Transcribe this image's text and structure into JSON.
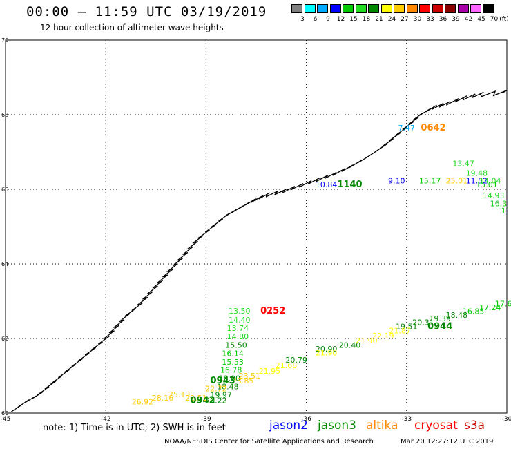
{
  "header": {
    "title": "00:00 – 11:59 UTC 03/19/2019",
    "subtitle": "12 hour collection of altimeter wave heights"
  },
  "color_scale": {
    "unit_label": "(ft)",
    "bins": [
      {
        "label": "3",
        "color": "#808080"
      },
      {
        "label": "6",
        "color": "#00ffff"
      },
      {
        "label": "9",
        "color": "#00aaff"
      },
      {
        "label": "12",
        "color": "#0000ff"
      },
      {
        "label": "15",
        "color": "#00cc00"
      },
      {
        "label": "18",
        "color": "#22dd22"
      },
      {
        "label": "21",
        "color": "#008800"
      },
      {
        "label": "24",
        "color": "#ffff00"
      },
      {
        "label": "27",
        "color": "#ffcc00"
      },
      {
        "label": "30",
        "color": "#ff8800"
      },
      {
        "label": "33",
        "color": "#ff0000"
      },
      {
        "label": "36",
        "color": "#cc0000"
      },
      {
        "label": "39",
        "color": "#880000"
      },
      {
        "label": "42",
        "color": "#aa00aa"
      },
      {
        "label": "45",
        "color": "#ff66ff"
      },
      {
        "label": "70",
        "color": "#000000"
      }
    ]
  },
  "map": {
    "lon_range": [
      -45,
      -30
    ],
    "lat_range": [
      60,
      70
    ],
    "lon_ticks": [
      {
        "value": -45,
        "label": "-45"
      },
      {
        "value": -42,
        "label": "-42"
      },
      {
        "value": -39,
        "label": "-39"
      },
      {
        "value": -36,
        "label": "-36"
      },
      {
        "value": -33,
        "label": "-33"
      },
      {
        "value": -30,
        "label": "-30"
      }
    ],
    "lat_ticks": [
      {
        "value": 60,
        "label": "60"
      },
      {
        "value": 62,
        "label": "62"
      },
      {
        "value": 64,
        "label": "64"
      },
      {
        "value": 66,
        "label": "66"
      },
      {
        "value": 68,
        "label": "68"
      },
      {
        "value": 70,
        "label": "70"
      }
    ],
    "grid": true,
    "time_labels": [
      {
        "text": "0642",
        "lon": -32.2,
        "lat": 67.57,
        "color": "#ff8800"
      },
      {
        "text": "1140",
        "lon": -34.7,
        "lat": 66.06,
        "color": "#008800"
      },
      {
        "text": "0252",
        "lon": -37.0,
        "lat": 62.67,
        "color": "#ff0000"
      },
      {
        "text": "0944",
        "lon": -32.0,
        "lat": 62.25,
        "color": "#008800"
      },
      {
        "text": "0943",
        "lon": -38.5,
        "lat": 60.8,
        "color": "#008800"
      },
      {
        "text": "0942",
        "lon": -39.1,
        "lat": 60.27,
        "color": "#008800"
      }
    ],
    "wave_heights": [
      {
        "text": "7.47",
        "lon": -33.0,
        "lat": 67.57,
        "color": "#00aaff"
      },
      {
        "text": "10.84",
        "lon": -35.4,
        "lat": 66.06,
        "color": "#0000ff"
      },
      {
        "text": "9.10",
        "lon": -33.3,
        "lat": 66.16,
        "color": "#0000ff"
      },
      {
        "text": "15.17",
        "lon": -32.3,
        "lat": 66.16,
        "color": "#00cc00"
      },
      {
        "text": "25.01",
        "lon": -31.5,
        "lat": 66.16,
        "color": "#ffcc00"
      },
      {
        "text": "11.52",
        "lon": -30.9,
        "lat": 66.16,
        "color": "#0000ff"
      },
      {
        "text": "13.47",
        "lon": -31.3,
        "lat": 66.62,
        "color": "#22dd22"
      },
      {
        "text": "19.48",
        "lon": -30.9,
        "lat": 66.36,
        "color": "#22dd22"
      },
      {
        "text": "14.04",
        "lon": -30.5,
        "lat": 66.16,
        "color": "#22dd22"
      },
      {
        "text": "15.01",
        "lon": -30.6,
        "lat": 66.06,
        "color": "#00cc00"
      },
      {
        "text": "14.93",
        "lon": -30.4,
        "lat": 65.76,
        "color": "#22dd22"
      },
      {
        "text": "16.3",
        "lon": -30.25,
        "lat": 65.55,
        "color": "#00cc00"
      },
      {
        "text": "1",
        "lon": -30.1,
        "lat": 65.35,
        "color": "#00cc00"
      },
      {
        "text": "13.50",
        "lon": -38.0,
        "lat": 62.67,
        "color": "#22dd22"
      },
      {
        "text": "14.40",
        "lon": -38.0,
        "lat": 62.43,
        "color": "#22dd22"
      },
      {
        "text": "13.74",
        "lon": -38.05,
        "lat": 62.2,
        "color": "#22dd22"
      },
      {
        "text": "14.80",
        "lon": -38.05,
        "lat": 61.98,
        "color": "#22dd22"
      },
      {
        "text": "15.50",
        "lon": -38.1,
        "lat": 61.75,
        "color": "#008800"
      },
      {
        "text": "16.14",
        "lon": -38.2,
        "lat": 61.53,
        "color": "#00cc00"
      },
      {
        "text": "15.53",
        "lon": -38.2,
        "lat": 61.3,
        "color": "#00cc00"
      },
      {
        "text": "16.78",
        "lon": -38.25,
        "lat": 61.08,
        "color": "#00cc00"
      },
      {
        "text": "18.90",
        "lon": -38.3,
        "lat": 60.86,
        "color": "#008800"
      },
      {
        "text": "18.48",
        "lon": -38.35,
        "lat": 60.64,
        "color": "#008800"
      },
      {
        "text": "19.97",
        "lon": -38.55,
        "lat": 60.42,
        "color": "#008800"
      },
      {
        "text": "20.22",
        "lon": -38.7,
        "lat": 60.27,
        "color": "#008800"
      },
      {
        "text": "20.79",
        "lon": -36.3,
        "lat": 61.35,
        "color": "#008800"
      },
      {
        "text": "20.90",
        "lon": -35.4,
        "lat": 61.65,
        "color": "#008800"
      },
      {
        "text": "20.40",
        "lon": -34.7,
        "lat": 61.75,
        "color": "#008800"
      },
      {
        "text": "19.51",
        "lon": -33.0,
        "lat": 62.25,
        "color": "#008800"
      },
      {
        "text": "20.31",
        "lon": -32.5,
        "lat": 62.36,
        "color": "#008800"
      },
      {
        "text": "19.39",
        "lon": -32.0,
        "lat": 62.46,
        "color": "#008800"
      },
      {
        "text": "18.48",
        "lon": -31.5,
        "lat": 62.56,
        "color": "#008800"
      },
      {
        "text": "16.85",
        "lon": -31.0,
        "lat": 62.66,
        "color": "#00cc00"
      },
      {
        "text": "17.24",
        "lon": -30.5,
        "lat": 62.76,
        "color": "#00cc00"
      },
      {
        "text": "17.6",
        "lon": -30.1,
        "lat": 62.86,
        "color": "#00cc00"
      },
      {
        "text": "26.92",
        "lon": -40.9,
        "lat": 60.23,
        "color": "#ffcc00"
      },
      {
        "text": "28.16",
        "lon": -40.3,
        "lat": 60.33,
        "color": "#ffcc00"
      },
      {
        "text": "25.13",
        "lon": -39.8,
        "lat": 60.43,
        "color": "#ffcc00"
      },
      {
        "text": "22.51",
        "lon": -39.3,
        "lat": 60.33,
        "color": "#ffcc00"
      },
      {
        "text": "22.72",
        "lon": -38.7,
        "lat": 60.58,
        "color": "#ffcc00"
      },
      {
        "text": "23.85",
        "lon": -37.9,
        "lat": 60.8,
        "color": "#ffcc00"
      },
      {
        "text": "23.51",
        "lon": -37.7,
        "lat": 60.93,
        "color": "#ffcc00"
      },
      {
        "text": "21.95",
        "lon": -37.1,
        "lat": 61.06,
        "color": "#ffff00"
      },
      {
        "text": "21.68",
        "lon": -36.6,
        "lat": 61.2,
        "color": "#ffff00"
      },
      {
        "text": "21.90",
        "lon": -35.4,
        "lat": 61.55,
        "color": "#ffff00"
      },
      {
        "text": "21.90",
        "lon": -34.2,
        "lat": 61.87,
        "color": "#ffff00"
      },
      {
        "text": "22.19",
        "lon": -33.7,
        "lat": 62.0,
        "color": "#ffff00"
      },
      {
        "text": "21.87",
        "lon": -33.2,
        "lat": 62.14,
        "color": "#ffff00"
      }
    ]
  },
  "footer": {
    "note": "note:  1) Time is in UTC;  2) SWH is in feet",
    "satellites": [
      {
        "name": "jason2",
        "color": "#0000ff"
      },
      {
        "name": "jason3",
        "color": "#008800"
      },
      {
        "name": "altika",
        "color": "#ff8800"
      },
      {
        "name": "cryosat",
        "color": "#ff0000"
      },
      {
        "name": "s3a",
        "color": "#cc0000"
      }
    ],
    "credit": "NOAA/NESDIS Center for Satellite Applications and Research",
    "timestamp": "Mar 20 12:27:12 UTC 2019"
  }
}
